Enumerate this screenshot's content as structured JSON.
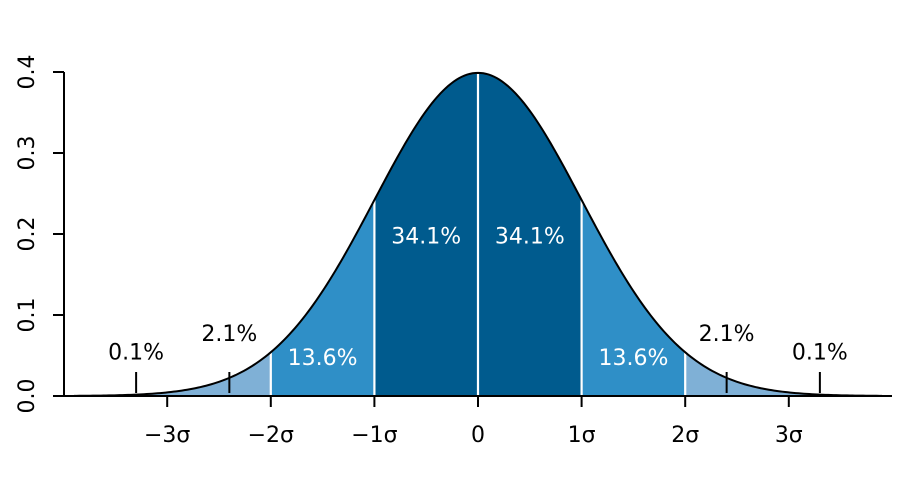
{
  "chart_data": {
    "type": "area",
    "distribution": "standard normal",
    "xlim": [
      -3.9,
      3.9
    ],
    "ylim": [
      0,
      0.4
    ],
    "x_ticks": [
      {
        "value": -3,
        "label": "−3σ"
      },
      {
        "value": -2,
        "label": "−2σ"
      },
      {
        "value": -1,
        "label": "−1σ"
      },
      {
        "value": 0,
        "label": "0"
      },
      {
        "value": 1,
        "label": "1σ"
      },
      {
        "value": 2,
        "label": "2σ"
      },
      {
        "value": 3,
        "label": "3σ"
      }
    ],
    "y_ticks": [
      {
        "value": 0.0,
        "label": "0.0"
      },
      {
        "value": 0.1,
        "label": "0.1"
      },
      {
        "value": 0.2,
        "label": "0.2"
      },
      {
        "value": 0.3,
        "label": "0.3"
      },
      {
        "value": 0.4,
        "label": "0.4"
      }
    ],
    "bands": [
      {
        "from": -3.9,
        "to": -2,
        "color": "#7fb0d6"
      },
      {
        "from": -2,
        "to": -1,
        "color": "#2f8fc7"
      },
      {
        "from": -1,
        "to": 0,
        "color": "#005b8e"
      },
      {
        "from": 0,
        "to": 1,
        "color": "#005b8e"
      },
      {
        "from": 1,
        "to": 2,
        "color": "#2f8fc7"
      },
      {
        "from": 2,
        "to": 3.9,
        "color": "#7fb0d6"
      }
    ],
    "band_labels": [
      {
        "text": "34.1%",
        "x": -0.5,
        "y": 0.188
      },
      {
        "text": "34.1%",
        "x": 0.5,
        "y": 0.188
      },
      {
        "text": "13.6%",
        "x": -1.5,
        "y": 0.038
      },
      {
        "text": "13.6%",
        "x": 1.5,
        "y": 0.038
      }
    ],
    "tail_labels": [
      {
        "text": "2.1%",
        "x": -2.4,
        "y": 0.068,
        "tick_x": -2.4
      },
      {
        "text": "2.1%",
        "x": 2.4,
        "y": 0.068,
        "tick_x": 2.4
      },
      {
        "text": "0.1%",
        "x": -3.3,
        "y": 0.045,
        "tick_x": -3.3
      },
      {
        "text": "0.1%",
        "x": 3.3,
        "y": 0.045,
        "tick_x": 3.3
      }
    ],
    "colors": {
      "curve": "#000000",
      "divider": "#ffffff",
      "axis": "#000000"
    }
  }
}
